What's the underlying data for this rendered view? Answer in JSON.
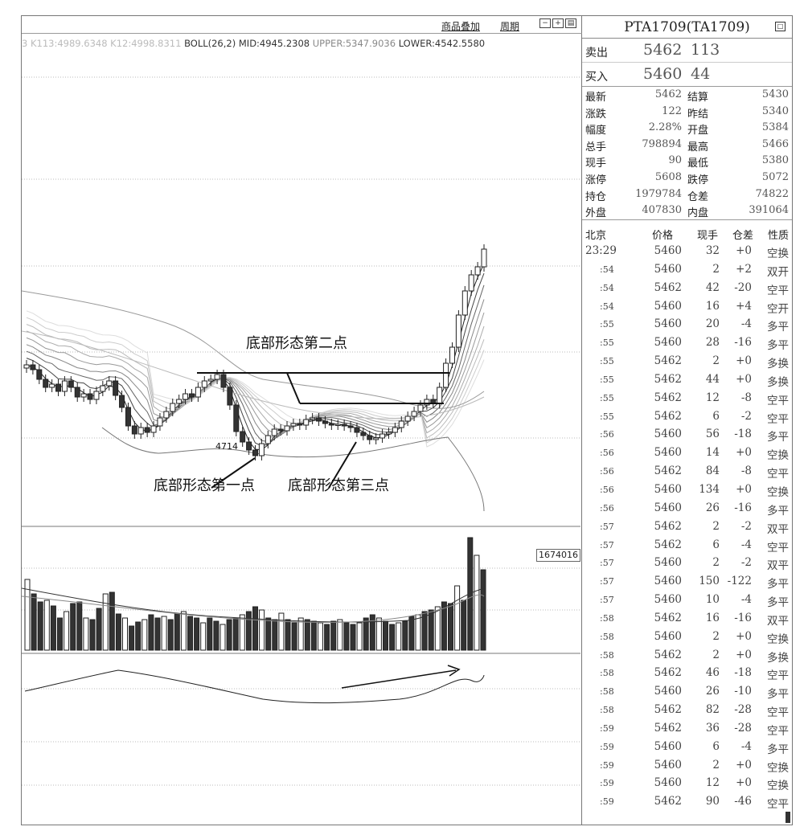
{
  "toolbar": {
    "overlay_label": "商品叠加",
    "period_label": "周期",
    "icon_names": [
      "zoom-out-icon",
      "zoom-in-icon",
      "layout-icon"
    ]
  },
  "indicator": {
    "faded_text": "3 K113:4989.6348 K12:4998.8311",
    "boll_label": "BOLL(26,2)",
    "mid_label": "MID:4945.2308",
    "upper_label": "UPPER:5347.9036",
    "lower_label": "LOWER:4542.5580"
  },
  "annotations": {
    "second_point": "底部形态第二点",
    "first_point": "底部形态第一点",
    "third_point": "底部形态第三点",
    "low_price": "4714"
  },
  "volume_label": "1674016",
  "quote": {
    "title": "PTA1709(TA1709)",
    "sell": {
      "label": "卖出",
      "price": "5462",
      "volume": "113"
    },
    "buy": {
      "label": "买入",
      "price": "5460",
      "volume": "44"
    },
    "stats": [
      {
        "l1": "最新",
        "v1": "5462",
        "l2": "结算",
        "v2": "5430"
      },
      {
        "l1": "涨跌",
        "v1": "122",
        "l2": "昨结",
        "v2": "5340"
      },
      {
        "l1": "幅度",
        "v1": "2.28%",
        "l2": "开盘",
        "v2": "5384"
      },
      {
        "l1": "总手",
        "v1": "798894",
        "l2": "最高",
        "v2": "5466"
      },
      {
        "l1": "现手",
        "v1": "90",
        "l2": "最低",
        "v2": "5380"
      },
      {
        "l1": "涨停",
        "v1": "5608",
        "l2": "跌停",
        "v2": "5072"
      },
      {
        "l1": "持仓",
        "v1": "1979784",
        "l2": "仓差",
        "v2": "74822"
      },
      {
        "l1": "外盘",
        "v1": "407830",
        "l2": "内盘",
        "v2": "391064"
      }
    ],
    "tick_headers": {
      "time": "北京",
      "price": "价格",
      "vol": "现手",
      "oi": "仓差",
      "nature": "性质"
    },
    "ticks": [
      {
        "t": "23:29",
        "p": "5460",
        "v": "32",
        "o": "+0",
        "n": "空换"
      },
      {
        "t": ":54",
        "p": "5460",
        "v": "2",
        "o": "+2",
        "n": "双开"
      },
      {
        "t": ":54",
        "p": "5462",
        "v": "42",
        "o": "-20",
        "n": "空平"
      },
      {
        "t": ":54",
        "p": "5460",
        "v": "16",
        "o": "+4",
        "n": "空开"
      },
      {
        "t": ":55",
        "p": "5460",
        "v": "20",
        "o": "-4",
        "n": "多平"
      },
      {
        "t": ":55",
        "p": "5460",
        "v": "28",
        "o": "-16",
        "n": "多平"
      },
      {
        "t": ":55",
        "p": "5462",
        "v": "2",
        "o": "+0",
        "n": "多换"
      },
      {
        "t": ":55",
        "p": "5462",
        "v": "44",
        "o": "+0",
        "n": "多换"
      },
      {
        "t": ":55",
        "p": "5462",
        "v": "12",
        "o": "-8",
        "n": "空平"
      },
      {
        "t": ":55",
        "p": "5462",
        "v": "6",
        "o": "-2",
        "n": "空平"
      },
      {
        "t": ":56",
        "p": "5460",
        "v": "56",
        "o": "-18",
        "n": "多平"
      },
      {
        "t": ":56",
        "p": "5460",
        "v": "14",
        "o": "+0",
        "n": "空换"
      },
      {
        "t": ":56",
        "p": "5462",
        "v": "84",
        "o": "-8",
        "n": "空平"
      },
      {
        "t": ":56",
        "p": "5460",
        "v": "134",
        "o": "+0",
        "n": "空换"
      },
      {
        "t": ":56",
        "p": "5460",
        "v": "26",
        "o": "-16",
        "n": "多平"
      },
      {
        "t": ":57",
        "p": "5462",
        "v": "2",
        "o": "-2",
        "n": "双平"
      },
      {
        "t": ":57",
        "p": "5462",
        "v": "6",
        "o": "-4",
        "n": "空平"
      },
      {
        "t": ":57",
        "p": "5460",
        "v": "2",
        "o": "-2",
        "n": "双平"
      },
      {
        "t": ":57",
        "p": "5460",
        "v": "150",
        "o": "-122",
        "n": "多平"
      },
      {
        "t": ":57",
        "p": "5460",
        "v": "10",
        "o": "-4",
        "n": "多平"
      },
      {
        "t": ":58",
        "p": "5462",
        "v": "16",
        "o": "-16",
        "n": "双平"
      },
      {
        "t": ":58",
        "p": "5460",
        "v": "2",
        "o": "+0",
        "n": "空换"
      },
      {
        "t": ":58",
        "p": "5462",
        "v": "2",
        "o": "+0",
        "n": "多换"
      },
      {
        "t": ":58",
        "p": "5462",
        "v": "46",
        "o": "-18",
        "n": "空平"
      },
      {
        "t": ":58",
        "p": "5460",
        "v": "26",
        "o": "-10",
        "n": "多平"
      },
      {
        "t": ":58",
        "p": "5462",
        "v": "82",
        "o": "-28",
        "n": "空平"
      },
      {
        "t": ":59",
        "p": "5462",
        "v": "36",
        "o": "-28",
        "n": "空平"
      },
      {
        "t": ":59",
        "p": "5460",
        "v": "6",
        "o": "-4",
        "n": "多平"
      },
      {
        "t": ":59",
        "p": "5460",
        "v": "2",
        "o": "+0",
        "n": "空换"
      },
      {
        "t": ":59",
        "p": "5460",
        "v": "12",
        "o": "+0",
        "n": "空换"
      },
      {
        "t": ":59",
        "p": "5462",
        "v": "90",
        "o": "-46",
        "n": "空平"
      }
    ]
  },
  "colors": {
    "bull": "#ffffff",
    "bear": "#333333",
    "line": "#222222"
  }
}
